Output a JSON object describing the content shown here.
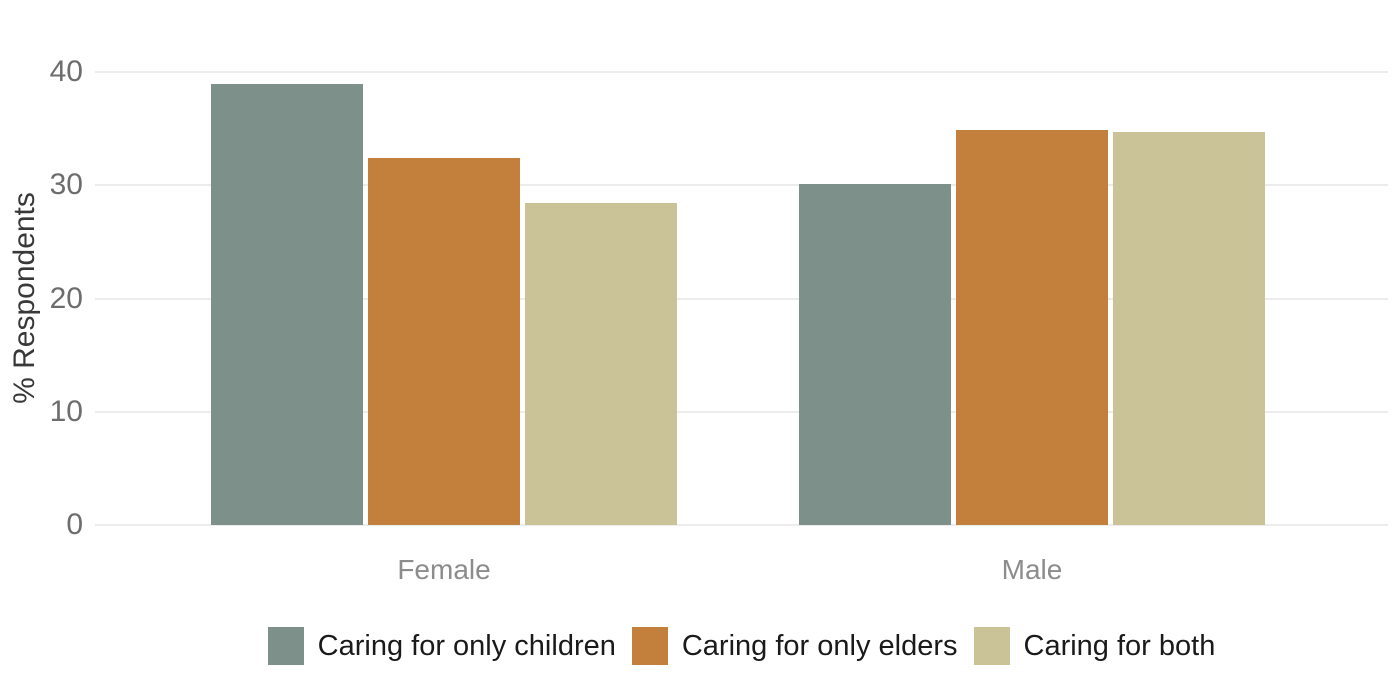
{
  "chart_data": {
    "type": "bar",
    "title": "",
    "xlabel": "",
    "ylabel": "% Respondents",
    "categories": [
      "Female",
      "Male"
    ],
    "series": [
      {
        "name": "Caring for only children",
        "color": "#7D918A",
        "values": [
          38.9,
          30.1
        ]
      },
      {
        "name": "Caring for only elders",
        "color": "#C2803C",
        "values": [
          32.4,
          34.9
        ]
      },
      {
        "name": "Caring for both",
        "color": "#CBC398",
        "values": [
          28.4,
          34.7
        ]
      }
    ],
    "y_ticks": [
      0,
      10,
      20,
      30,
      40
    ],
    "ylim": [
      0,
      40
    ],
    "grid": "horizontal-major-only",
    "grid_color": "#ECECEC",
    "legend_position": "bottom-center",
    "background_color": "#FFFFFF",
    "tick_label_color": "#6D6D6D",
    "category_label_color": "#8C8C8C",
    "axis_title_color": "#383838",
    "legend_text_color": "#1A1A1A"
  }
}
